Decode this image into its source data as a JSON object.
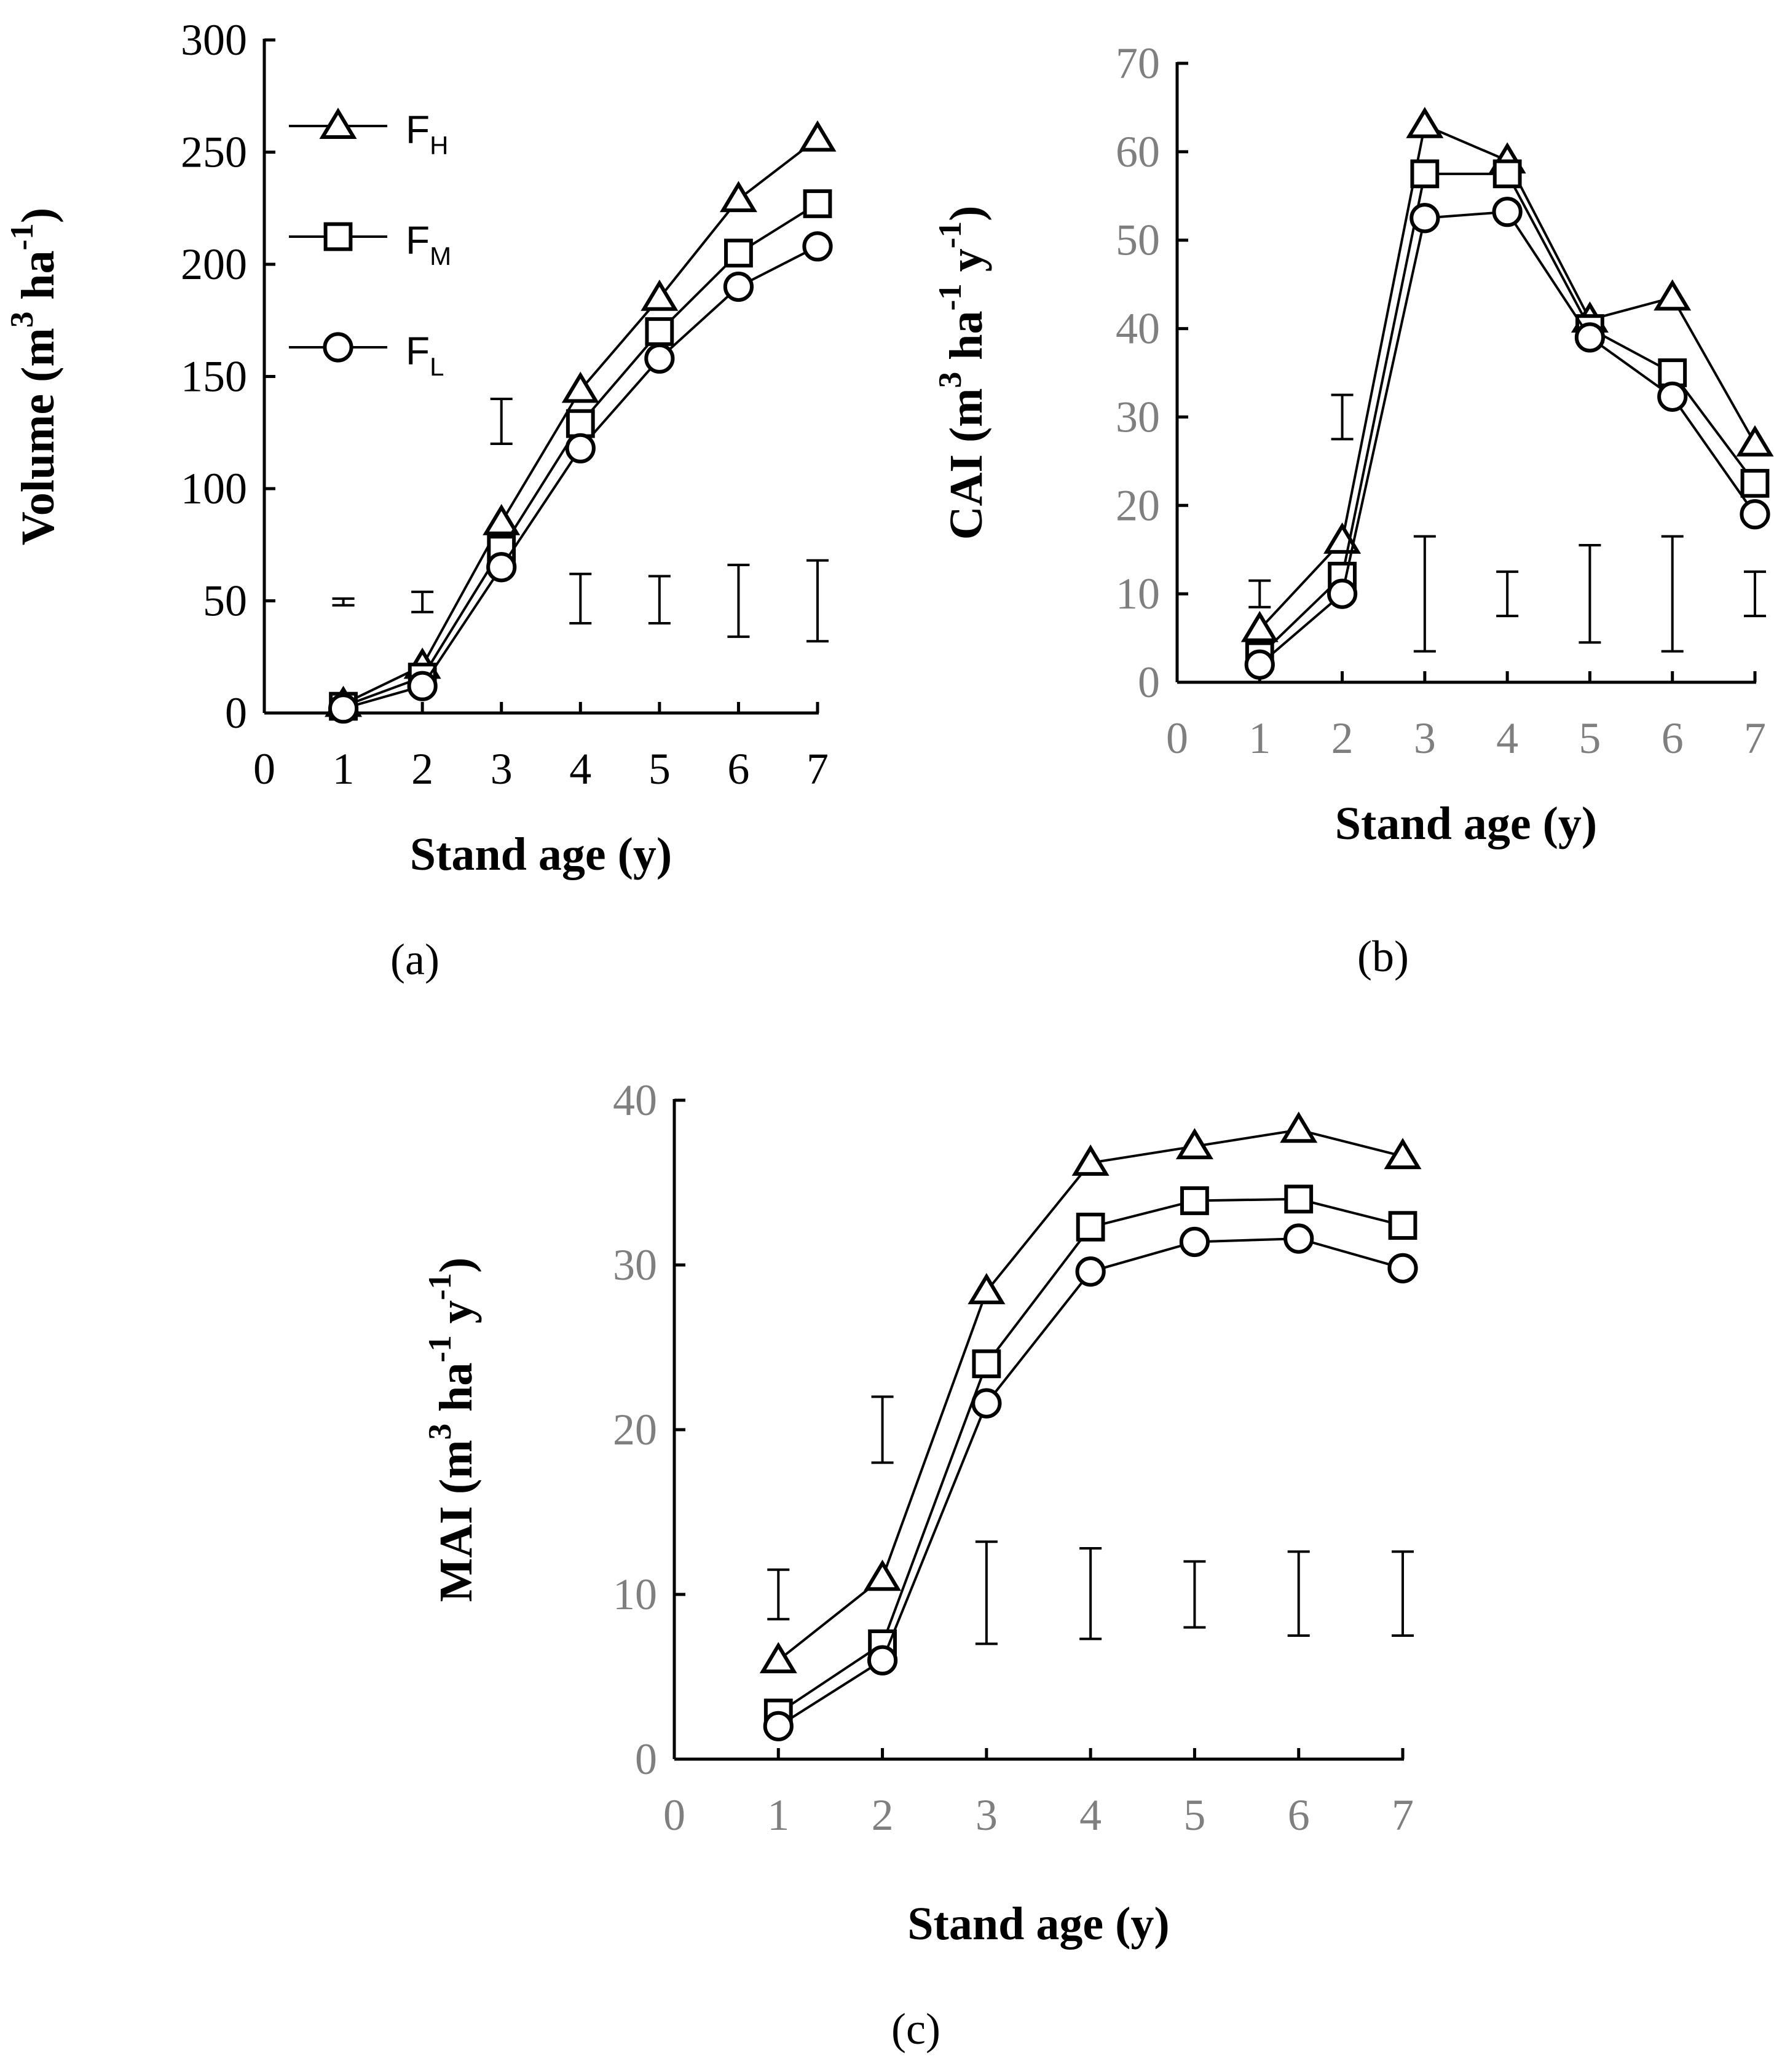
{
  "chart_data": [
    {
      "type": "line",
      "panel_label": "(a)",
      "xlabel": "Stand age (y)",
      "ylabel": "Volume (m³ ha⁻¹)",
      "xlim": [
        0,
        7
      ],
      "ylim": [
        0,
        300
      ],
      "x_ticks": [
        "0",
        "1",
        "2",
        "3",
        "4",
        "5",
        "6",
        "7"
      ],
      "y_ticks": [
        "0",
        "50",
        "100",
        "150",
        "200",
        "250",
        "300"
      ],
      "grid": false,
      "legend_position": "top-left",
      "x": [
        1,
        2,
        3,
        4,
        5,
        6,
        7
      ],
      "series": [
        {
          "name": "F",
          "subscript": "H",
          "marker": "triangle",
          "values": [
            4,
            21,
            85,
            144,
            185,
            229,
            256
          ]
        },
        {
          "name": "F",
          "subscript": "M",
          "marker": "square",
          "values": [
            3,
            16,
            73,
            129,
            170,
            205,
            227
          ]
        },
        {
          "name": "F",
          "subscript": "L",
          "marker": "circle",
          "values": [
            2,
            12,
            65,
            118,
            158,
            190,
            208
          ]
        }
      ],
      "error_bars": [
        {
          "x": 1,
          "low": 48,
          "high": 51
        },
        {
          "x": 2,
          "low": 45,
          "high": 54
        },
        {
          "x": 3,
          "low": 120,
          "high": 140
        },
        {
          "x": 4,
          "low": 40,
          "high": 62
        },
        {
          "x": 5,
          "low": 40,
          "high": 61
        },
        {
          "x": 6,
          "low": 34,
          "high": 66
        },
        {
          "x": 7,
          "low": 32,
          "high": 68
        }
      ]
    },
    {
      "type": "line",
      "panel_label": "(b)",
      "xlabel": "Stand age (y)",
      "ylabel": "CAI (m³ ha⁻¹ y⁻¹)",
      "xlim": [
        0,
        7
      ],
      "ylim": [
        0,
        70
      ],
      "x_ticks": [
        "0",
        "1",
        "2",
        "3",
        "4",
        "5",
        "6",
        "7"
      ],
      "y_ticks": [
        "0",
        "10",
        "20",
        "30",
        "40",
        "50",
        "60",
        "70"
      ],
      "grid": false,
      "x": [
        1,
        2,
        3,
        4,
        5,
        6,
        7
      ],
      "series": [
        {
          "subscript": "H",
          "marker": "triangle",
          "values": [
            6,
            16,
            63,
            59,
            41,
            43.5,
            27
          ]
        },
        {
          "subscript": "M",
          "marker": "square",
          "values": [
            3,
            12,
            57.5,
            57.5,
            40,
            35,
            22.5
          ]
        },
        {
          "subscript": "L",
          "marker": "circle",
          "values": [
            2,
            10,
            52.5,
            53.2,
            39,
            32.3,
            19
          ]
        }
      ],
      "error_bars": [
        {
          "x": 1,
          "low": 8.5,
          "high": 11.5
        },
        {
          "x": 2,
          "low": 27.5,
          "high": 32.5
        },
        {
          "x": 3,
          "low": 3.5,
          "high": 16.5
        },
        {
          "x": 4,
          "low": 7.5,
          "high": 12.5
        },
        {
          "x": 5,
          "low": 4.5,
          "high": 15.5
        },
        {
          "x": 6,
          "low": 3.5,
          "high": 16.5
        },
        {
          "x": 7,
          "low": 7.5,
          "high": 12.5
        }
      ]
    },
    {
      "type": "line",
      "panel_label": "(c)",
      "xlabel": "Stand age (y)",
      "ylabel": "MAI (m³ ha⁻¹ y⁻¹)",
      "xlim": [
        0,
        7
      ],
      "ylim": [
        0,
        40
      ],
      "x_ticks": [
        "0",
        "1",
        "2",
        "3",
        "4",
        "5",
        "6",
        "7"
      ],
      "y_ticks": [
        "0",
        "10",
        "20",
        "30",
        "40"
      ],
      "grid": false,
      "x": [
        1,
        2,
        3,
        4,
        5,
        6,
        7
      ],
      "series": [
        {
          "subscript": "H",
          "marker": "triangle",
          "values": [
            6,
            11,
            28.4,
            36.2,
            37.2,
            38.2,
            36.6
          ]
        },
        {
          "subscript": "M",
          "marker": "square",
          "values": [
            2.8,
            7,
            24,
            32.3,
            33.9,
            34,
            32.4
          ]
        },
        {
          "subscript": "L",
          "marker": "circle",
          "values": [
            2,
            6,
            21.6,
            29.6,
            31.4,
            31.6,
            29.8
          ]
        }
      ],
      "error_bars": [
        {
          "x": 1,
          "low": 8.5,
          "high": 11.5
        },
        {
          "x": 2,
          "low": 18,
          "high": 22
        },
        {
          "x": 3,
          "low": 7,
          "high": 13.2
        },
        {
          "x": 4,
          "low": 7.3,
          "high": 12.8
        },
        {
          "x": 5,
          "low": 8,
          "high": 12
        },
        {
          "x": 6,
          "low": 7.5,
          "high": 12.6
        },
        {
          "x": 7,
          "low": 7.5,
          "high": 12.6
        }
      ]
    }
  ]
}
